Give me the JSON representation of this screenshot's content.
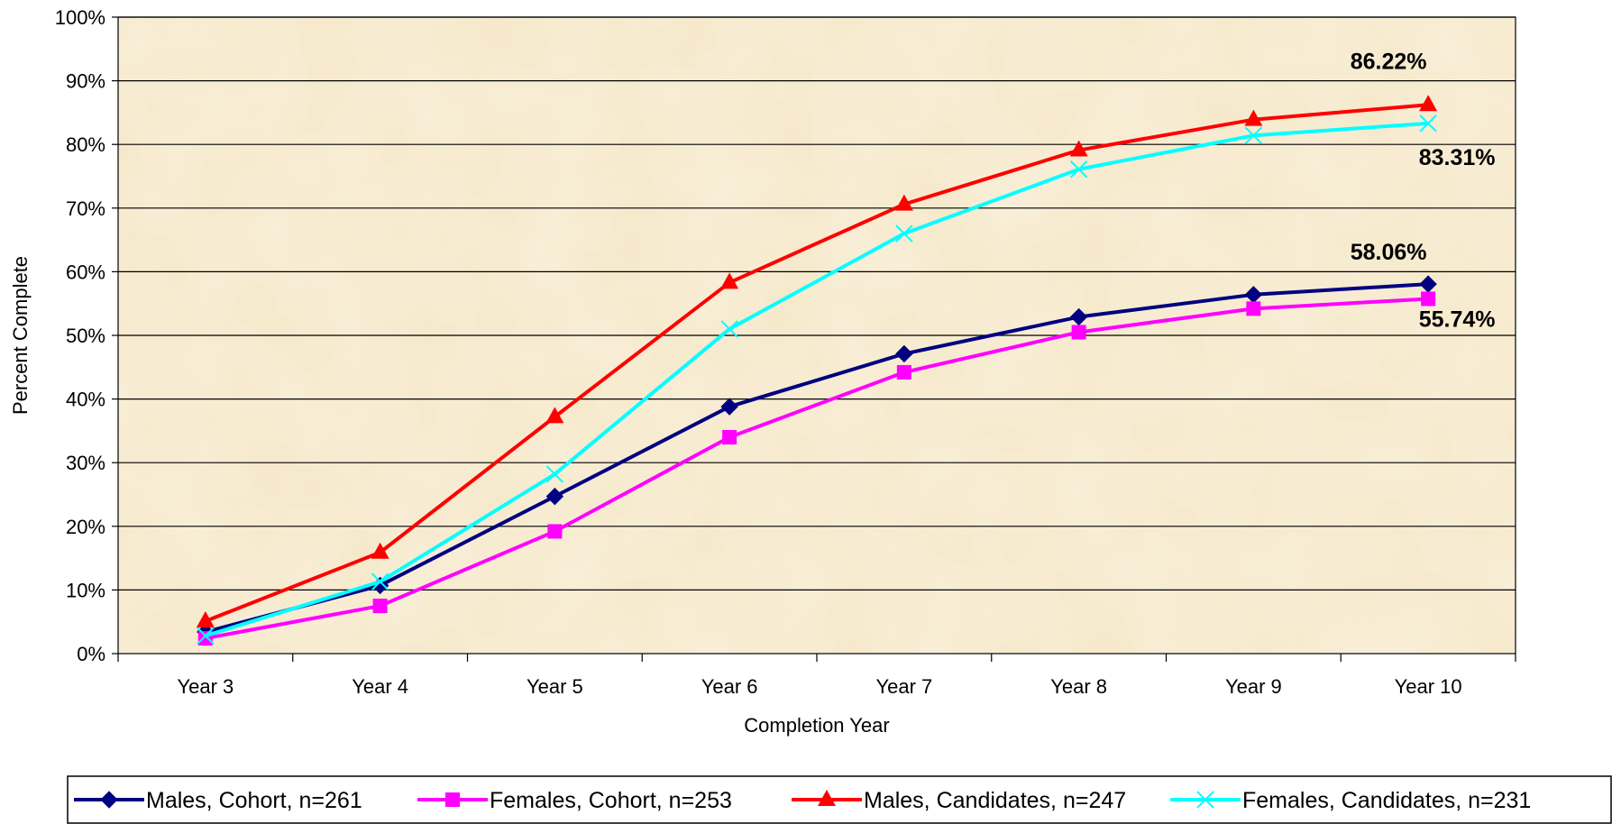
{
  "chart_data": {
    "type": "line",
    "title": "",
    "xlabel": "Completion Year",
    "ylabel": "Percent Complete",
    "categories": [
      "Year 3",
      "Year 4",
      "Year 5",
      "Year 6",
      "Year 7",
      "Year 8",
      "Year 9",
      "Year 10"
    ],
    "y_ticks": [
      "0%",
      "10%",
      "20%",
      "30%",
      "40%",
      "50%",
      "60%",
      "70%",
      "80%",
      "90%",
      "100%"
    ],
    "ylim": [
      0,
      100
    ],
    "grid": true,
    "legend_position": "bottom",
    "series": [
      {
        "name": "Males, Cohort, n=261",
        "color": "#000080",
        "marker": "diamond",
        "values": [
          3.4,
          10.7,
          24.7,
          38.8,
          47.1,
          52.9,
          56.4,
          58.06
        ],
        "end_label": "58.06%"
      },
      {
        "name": "Females, Cohort, n=253",
        "color": "#FF00FF",
        "marker": "square",
        "values": [
          2.4,
          7.5,
          19.2,
          34.0,
          44.2,
          50.5,
          54.2,
          55.74
        ],
        "end_label": "55.74%"
      },
      {
        "name": "Males, Candidates, n=247",
        "color": "#FF0000",
        "marker": "triangle",
        "values": [
          5.1,
          15.9,
          37.2,
          58.3,
          70.6,
          79.1,
          83.9,
          86.22
        ],
        "end_label": "86.22%"
      },
      {
        "name": "Females, Candidates, n=231",
        "color": "#00FFFF",
        "marker": "x",
        "values": [
          2.8,
          11.3,
          28.2,
          51.0,
          66.0,
          76.1,
          81.4,
          83.31
        ],
        "end_label": "83.31%"
      }
    ]
  }
}
